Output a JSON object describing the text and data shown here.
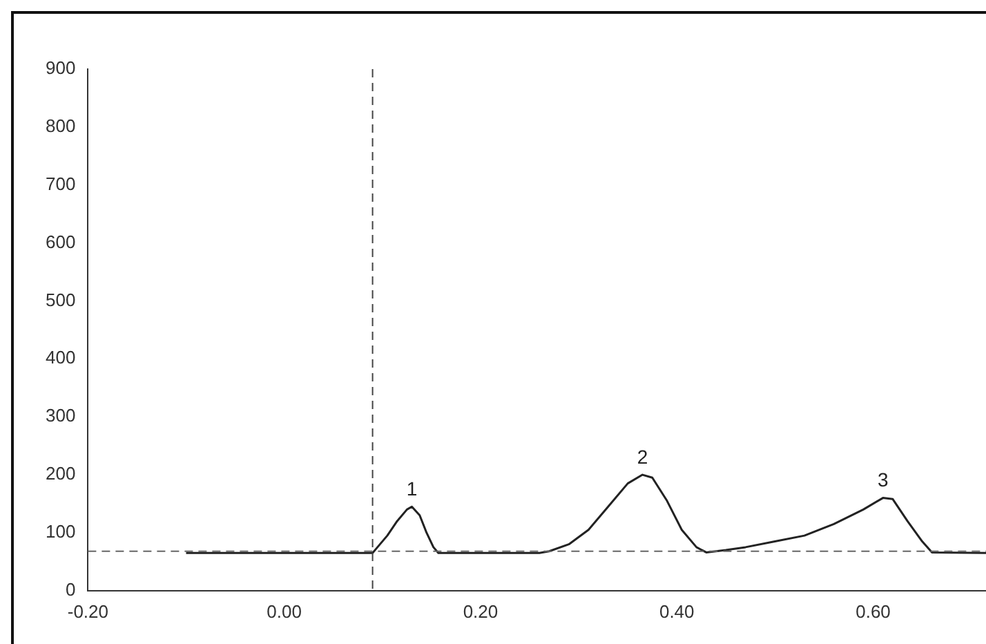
{
  "chart_data": {
    "type": "line",
    "x": [
      -0.1,
      0.09,
      0.095,
      0.105,
      0.115,
      0.125,
      0.13,
      0.138,
      0.145,
      0.152,
      0.157,
      0.26,
      0.27,
      0.29,
      0.31,
      0.33,
      0.35,
      0.365,
      0.375,
      0.39,
      0.405,
      0.42,
      0.43,
      0.45,
      0.47,
      0.5,
      0.53,
      0.56,
      0.59,
      0.61,
      0.62,
      0.635,
      0.65,
      0.66,
      0.715
    ],
    "series": [
      {
        "color": "#222222",
        "values": [
          65,
          65,
          75,
          95,
          120,
          140,
          145,
          130,
          100,
          75,
          65,
          65,
          68,
          80,
          105,
          145,
          185,
          200,
          195,
          155,
          105,
          75,
          66,
          70,
          75,
          85,
          95,
          115,
          140,
          160,
          158,
          120,
          85,
          66,
          65
        ]
      }
    ],
    "xlim": [
      -0.2,
      0.715
    ],
    "ylim": [
      0,
      900
    ],
    "xticks": [
      {
        "value": -0.2,
        "label": "-0.20"
      },
      {
        "value": 0,
        "label": "0.00"
      },
      {
        "value": 0.2,
        "label": "0.20"
      },
      {
        "value": 0.4,
        "label": "0.40"
      },
      {
        "value": 0.6,
        "label": "0.60"
      }
    ],
    "yticks": [
      0,
      100,
      200,
      300,
      400,
      500,
      600,
      700,
      800,
      900
    ],
    "ref_lines": [
      {
        "axis": "y",
        "value": 68,
        "color": "#666666",
        "line_style": "dashed"
      },
      {
        "axis": "x",
        "value": 0.09,
        "color": "#444444",
        "line_style": "dashed"
      }
    ],
    "annotations": [
      {
        "text": "1",
        "x": 0.13,
        "y": 145
      },
      {
        "text": "2",
        "x": 0.365,
        "y": 200
      },
      {
        "text": "3",
        "x": 0.61,
        "y": 160
      }
    ],
    "grid": false,
    "legend": false,
    "marker": "none",
    "line_style": "solid"
  }
}
